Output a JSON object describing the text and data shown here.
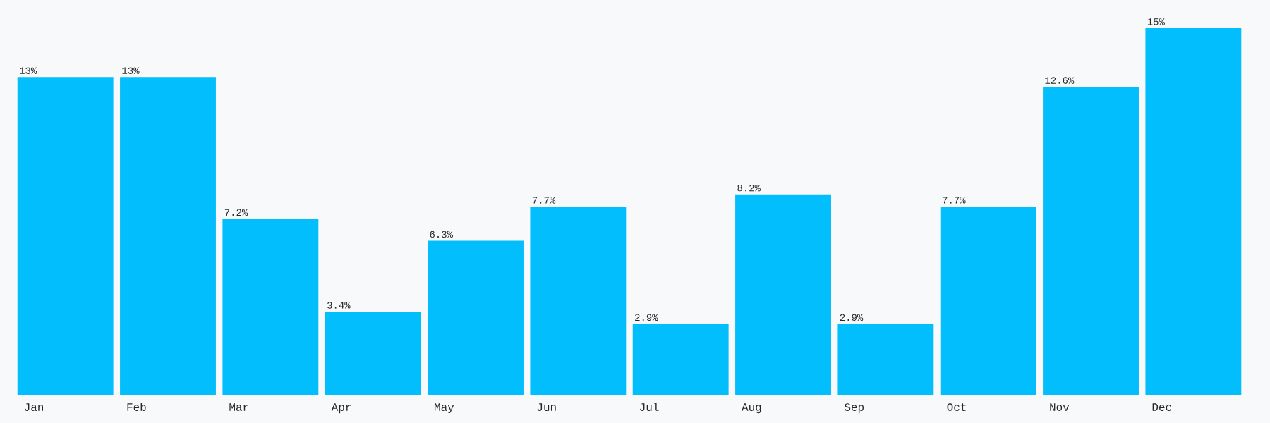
{
  "chart_data": {
    "type": "bar",
    "categories": [
      "Jan",
      "Feb",
      "Mar",
      "Apr",
      "May",
      "Jun",
      "Jul",
      "Aug",
      "Sep",
      "Oct",
      "Nov",
      "Dec"
    ],
    "values": [
      13,
      13,
      7.2,
      3.4,
      6.3,
      7.7,
      2.9,
      8.2,
      2.9,
      7.7,
      12.6,
      15
    ],
    "value_labels": [
      "13%",
      "13%",
      "7.2%",
      "3.4%",
      "6.3%",
      "7.7%",
      "2.9%",
      "8.2%",
      "2.9%",
      "7.7%",
      "12.6%",
      "15%"
    ],
    "color": "#03befc"
  }
}
